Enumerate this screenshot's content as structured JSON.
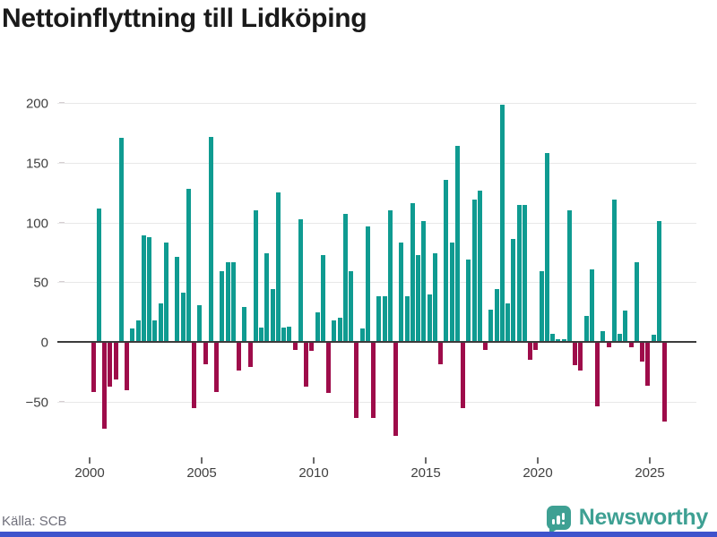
{
  "title": "Nettoinflyttning till Lidköping",
  "source_label": "Källa: SCB",
  "branding": {
    "logo_text": "Newsworthy",
    "logo_color": "#3ea093",
    "strip_color": "#3e53cc"
  },
  "chart_data": {
    "type": "bar",
    "title": "Nettoinflyttning till Lidköping",
    "xlabel": "",
    "ylabel": "",
    "x_frequency": "quarterly",
    "x_start": "2000 Q1",
    "x_end": "2025 Q3",
    "grid": "horizontal",
    "ylim": [
      -90,
      215
    ],
    "colors": {
      "positive": "#0f9b91",
      "negative": "#9e0c4a"
    },
    "y_axis": {
      "ticks": [
        {
          "v": 200,
          "label": "200"
        },
        {
          "v": 150,
          "label": "150"
        },
        {
          "v": 100,
          "label": "100"
        },
        {
          "v": 50,
          "label": "50"
        },
        {
          "v": 0,
          "label": "0"
        },
        {
          "v": -50,
          "label": "−50"
        }
      ]
    },
    "x_axis": {
      "ticks": [
        {
          "year": 2000,
          "label": "2000"
        },
        {
          "year": 2005,
          "label": "2005"
        },
        {
          "year": 2010,
          "label": "2010"
        },
        {
          "year": 2015,
          "label": "2015"
        },
        {
          "year": 2020,
          "label": "2020"
        },
        {
          "year": 2025,
          "label": "2025"
        }
      ]
    },
    "series_by_year": [
      {
        "year": 2000,
        "values": [
          -41,
          112,
          -72,
          -37
        ]
      },
      {
        "year": 2001,
        "values": [
          -31,
          171,
          -40,
          11
        ]
      },
      {
        "year": 2002,
        "values": [
          18,
          89,
          88,
          18
        ]
      },
      {
        "year": 2003,
        "values": [
          32,
          83,
          0,
          71
        ]
      },
      {
        "year": 2004,
        "values": [
          41,
          128,
          -55,
          31
        ]
      },
      {
        "year": 2005,
        "values": [
          -18,
          172,
          -41,
          59
        ]
      },
      {
        "year": 2006,
        "values": [
          67,
          67,
          -23,
          29
        ]
      },
      {
        "year": 2007,
        "values": [
          -20,
          110,
          12,
          74
        ]
      },
      {
        "year": 2008,
        "values": [
          44,
          125,
          12,
          13
        ]
      },
      {
        "year": 2009,
        "values": [
          -6,
          103,
          -37,
          -7
        ]
      },
      {
        "year": 2010,
        "values": [
          25,
          73,
          -42,
          18
        ]
      },
      {
        "year": 2011,
        "values": [
          20,
          107,
          59,
          -63
        ]
      },
      {
        "year": 2012,
        "values": [
          11,
          97,
          -63,
          38
        ]
      },
      {
        "year": 2013,
        "values": [
          38,
          110,
          -78,
          83
        ]
      },
      {
        "year": 2014,
        "values": [
          38,
          116,
          73,
          101
        ]
      },
      {
        "year": 2015,
        "values": [
          40,
          74,
          -18,
          136
        ]
      },
      {
        "year": 2016,
        "values": [
          83,
          164,
          -55,
          69
        ]
      },
      {
        "year": 2017,
        "values": [
          119,
          127,
          -6,
          27
        ]
      },
      {
        "year": 2018,
        "values": [
          44,
          199,
          32,
          86
        ]
      },
      {
        "year": 2019,
        "values": [
          115,
          115,
          -14,
          -6
        ]
      },
      {
        "year": 2020,
        "values": [
          59,
          158,
          7,
          2
        ]
      },
      {
        "year": 2021,
        "values": [
          2,
          110,
          -19,
          -23
        ]
      },
      {
        "year": 2022,
        "values": [
          22,
          61,
          -53,
          9
        ]
      },
      {
        "year": 2023,
        "values": [
          -4,
          119,
          7,
          26
        ]
      },
      {
        "year": 2024,
        "values": [
          -4,
          67,
          -16,
          -36
        ]
      },
      {
        "year": 2025,
        "values": [
          6,
          101,
          -66
        ]
      }
    ]
  }
}
